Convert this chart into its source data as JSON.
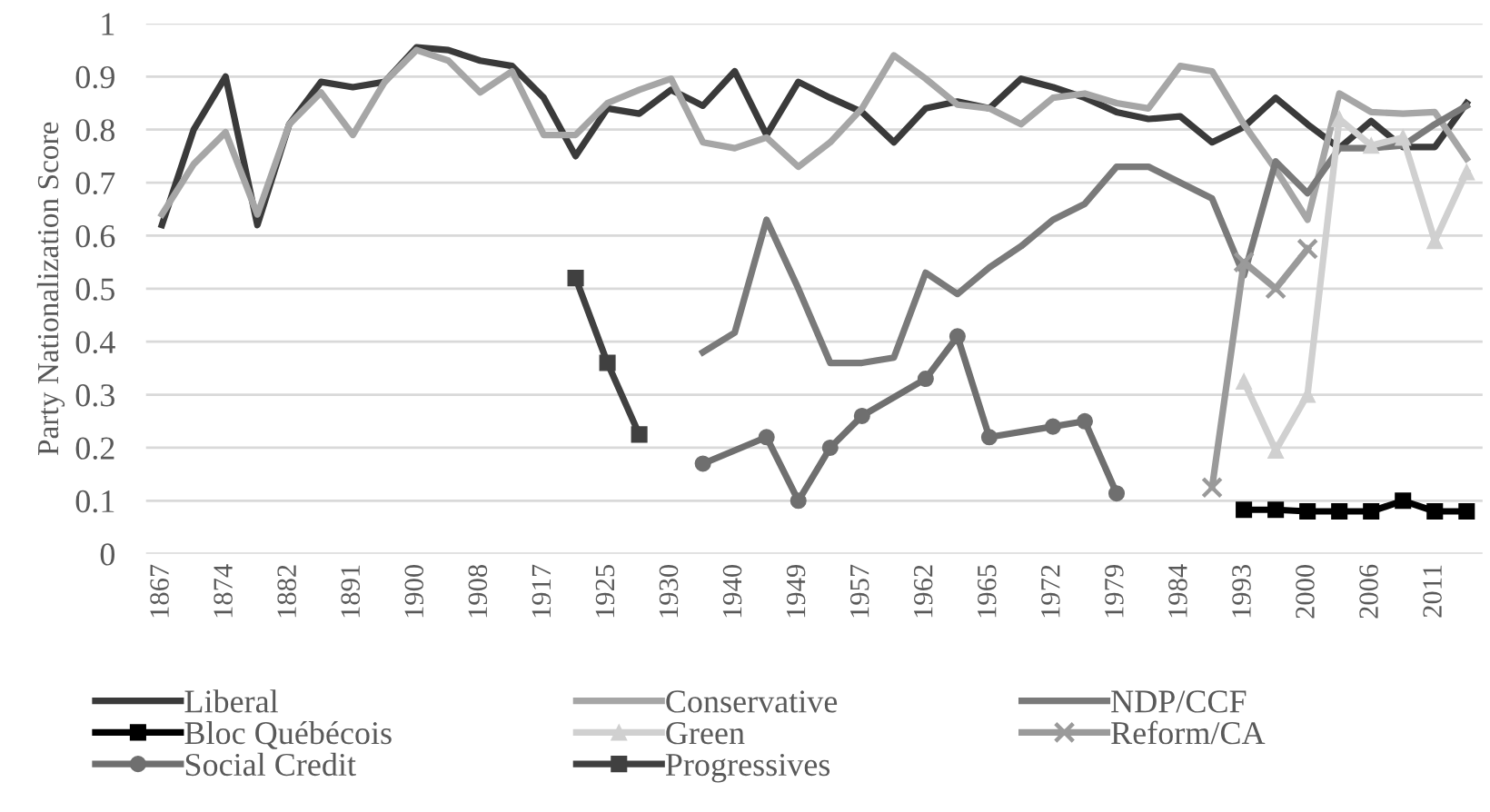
{
  "chart_data": {
    "type": "line",
    "ylabel": "Party Nationalization Score",
    "categories": [
      "1867",
      null,
      "1874",
      null,
      "1882",
      null,
      "1891",
      null,
      "1900",
      null,
      "1908",
      null,
      "1917",
      null,
      "1925",
      null,
      "1930",
      null,
      "1940",
      null,
      "1949",
      null,
      "1957",
      null,
      "1962",
      null,
      "1965",
      null,
      "1972",
      null,
      "1979",
      null,
      "1984",
      null,
      "1993",
      null,
      "2000",
      null,
      "2006",
      null,
      "2011",
      null
    ],
    "ylim": [
      0,
      1
    ],
    "yticks": [
      0,
      0.1,
      0.2,
      0.3,
      0.4,
      0.5,
      0.6,
      0.7,
      0.8,
      0.9,
      1
    ],
    "grid": "y",
    "legend": "bottom",
    "series": [
      {
        "name": "Liberal",
        "color": "#3a3a3a",
        "marker": "none",
        "values": [
          0.62,
          0.8,
          0.9,
          0.62,
          0.81,
          0.89,
          0.88,
          0.89,
          0.955,
          0.95,
          0.93,
          0.92,
          0.86,
          0.75,
          0.84,
          0.83,
          0.875,
          0.845,
          0.91,
          0.79,
          0.89,
          0.86,
          0.833,
          0.776,
          0.84,
          0.853,
          0.84,
          0.896,
          0.88,
          0.86,
          0.833,
          0.82,
          0.825,
          0.776,
          0.805,
          0.86,
          0.81,
          0.765,
          0.816,
          0.767,
          0.767,
          0.85
        ]
      },
      {
        "name": "Conservative",
        "color": "#a6a6a6",
        "marker": "none",
        "values": [
          0.64,
          0.735,
          0.795,
          0.64,
          0.81,
          0.87,
          0.79,
          0.89,
          0.95,
          0.93,
          0.87,
          0.91,
          0.79,
          0.79,
          0.85,
          0.875,
          0.896,
          0.776,
          0.765,
          0.785,
          0.73,
          0.776,
          0.84,
          0.94,
          0.896,
          0.847,
          0.84,
          0.81,
          0.86,
          0.868,
          0.85,
          0.84,
          0.92,
          0.91,
          0.81,
          0.725,
          0.63,
          0.868,
          0.833,
          0.83,
          0.833,
          0.745
        ]
      },
      {
        "name": "NDP/CCF",
        "color": "#7a7a7a",
        "marker": "none",
        "values": [
          null,
          null,
          null,
          null,
          null,
          null,
          null,
          null,
          null,
          null,
          null,
          null,
          null,
          null,
          null,
          null,
          null,
          0.38,
          0.417,
          0.63,
          0.5,
          0.36,
          0.36,
          0.37,
          0.53,
          0.49,
          0.54,
          0.58,
          0.63,
          0.66,
          0.73,
          0.73,
          0.7,
          0.67,
          0.525,
          0.74,
          0.68,
          0.765,
          0.765,
          0.77,
          0.81,
          0.845
        ]
      },
      {
        "name": "Bloc Québécois",
        "color": "#000000",
        "marker": "square",
        "values": [
          null,
          null,
          null,
          null,
          null,
          null,
          null,
          null,
          null,
          null,
          null,
          null,
          null,
          null,
          null,
          null,
          null,
          null,
          null,
          null,
          null,
          null,
          null,
          null,
          null,
          null,
          null,
          null,
          null,
          null,
          null,
          null,
          null,
          null,
          0.083,
          0.083,
          0.08,
          0.08,
          0.08,
          0.1,
          0.08,
          0.08
        ]
      },
      {
        "name": "Green",
        "color": "#d0d0d0",
        "marker": "triangle",
        "values": [
          null,
          null,
          null,
          null,
          null,
          null,
          null,
          null,
          null,
          null,
          null,
          null,
          null,
          null,
          null,
          null,
          null,
          null,
          null,
          null,
          null,
          null,
          null,
          null,
          null,
          null,
          null,
          null,
          null,
          null,
          null,
          null,
          null,
          null,
          0.325,
          0.195,
          0.3,
          0.82,
          0.77,
          0.785,
          0.59,
          0.72
        ]
      },
      {
        "name": "Reform/CA",
        "color": "#9a9a9a",
        "marker": "cross",
        "values": [
          null,
          null,
          null,
          null,
          null,
          null,
          null,
          null,
          null,
          null,
          null,
          null,
          null,
          null,
          null,
          null,
          null,
          null,
          null,
          null,
          null,
          null,
          null,
          null,
          null,
          null,
          null,
          null,
          null,
          null,
          null,
          null,
          null,
          0.125,
          0.55,
          0.5,
          0.575,
          null,
          null,
          null,
          null,
          null
        ]
      },
      {
        "name": "Social Credit",
        "color": "#6f6f6f",
        "marker": "circle",
        "values": [
          null,
          null,
          null,
          null,
          null,
          null,
          null,
          null,
          null,
          null,
          null,
          null,
          null,
          null,
          null,
          null,
          null,
          0.17,
          null,
          0.22,
          0.1,
          0.2,
          0.26,
          null,
          0.33,
          0.41,
          0.22,
          null,
          0.24,
          0.25,
          0.114,
          null,
          null,
          null,
          null,
          null,
          null,
          null,
          null,
          null,
          null,
          null
        ]
      },
      {
        "name": "Progressives",
        "color": "#404040",
        "marker": "square",
        "values": [
          null,
          null,
          null,
          null,
          null,
          null,
          null,
          null,
          null,
          null,
          null,
          null,
          null,
          0.52,
          0.36,
          0.225,
          null,
          null,
          null,
          null,
          null,
          null,
          null,
          null,
          null,
          null,
          null,
          null,
          null,
          null,
          null,
          null,
          null,
          null,
          null,
          null,
          null,
          null,
          null,
          null,
          null,
          null
        ]
      }
    ]
  }
}
